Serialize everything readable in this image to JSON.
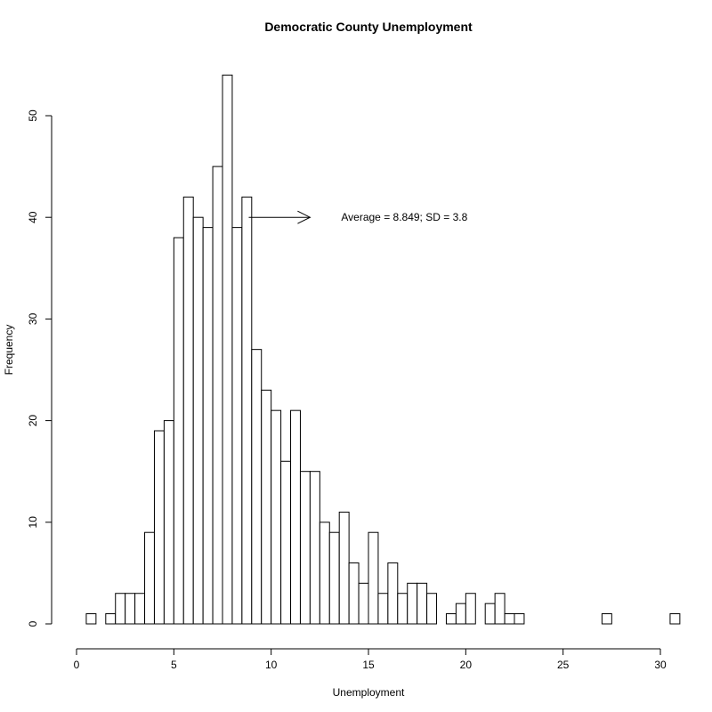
{
  "chart_data": {
    "type": "bar",
    "title": "Democratic County Unemployment",
    "xlabel": "Unemployment",
    "ylabel": "Frequency",
    "xlim": [
      0,
      31
    ],
    "ylim": [
      0,
      55
    ],
    "x_ticks": [
      0,
      5,
      10,
      15,
      20,
      25,
      30
    ],
    "y_ticks": [
      0,
      10,
      20,
      30,
      40,
      50
    ],
    "bin_width": 0.5,
    "bin_start": 0.5,
    "values": [
      1,
      0,
      1,
      3,
      3,
      3,
      9,
      19,
      20,
      38,
      42,
      40,
      39,
      45,
      54,
      39,
      42,
      27,
      23,
      21,
      16,
      21,
      15,
      15,
      10,
      9,
      11,
      6,
      4,
      9,
      3,
      6,
      3,
      4,
      4,
      3,
      0,
      1,
      2,
      3,
      0,
      2,
      3,
      1,
      1,
      0,
      0,
      0,
      0,
      0,
      0,
      0,
      0,
      1,
      0,
      0,
      0,
      0,
      0,
      0,
      1
    ],
    "annotation": {
      "text": "Average = 8.849; SD = 3.8",
      "arrow_from": [
        8.849,
        40
      ],
      "arrow_to": [
        12.0,
        40
      ],
      "text_x": 13.6,
      "text_y": 40
    }
  }
}
